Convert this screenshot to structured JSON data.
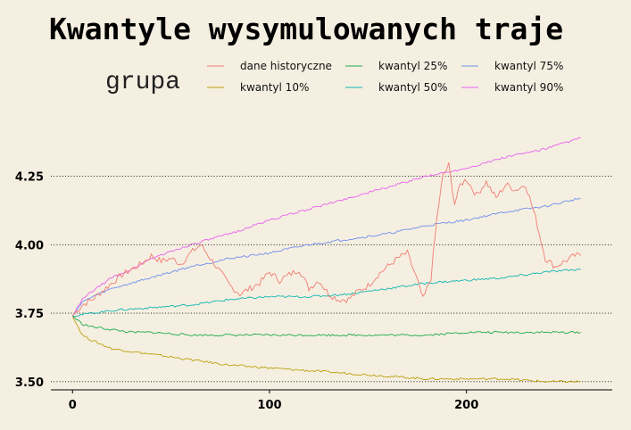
{
  "chart_data": {
    "type": "line",
    "title": "Kwantyle wysymulowanych traje",
    "xlabel": "",
    "ylabel": "",
    "xlim": [
      -11,
      274
    ],
    "ylim": [
      3.47,
      4.47
    ],
    "x_ticks": [
      0,
      100,
      200
    ],
    "y_ticks": [
      3.5,
      3.75,
      4.0,
      4.25
    ],
    "y_tick_labels": [
      "3.50",
      "3.75",
      "4.00",
      "4.25"
    ],
    "grid": "horizontal-dotted",
    "legend": {
      "title": "grupa",
      "placement": "top",
      "entries": [
        "dane historyczne",
        "kwantyl 10%",
        "kwantyl 25%",
        "kwantyl 50%",
        "kwantyl 75%",
        "kwantyl 90%"
      ]
    },
    "series": [
      {
        "name": "dane historyczne",
        "color": "#f07d72",
        "x": [
          0,
          5,
          10,
          15,
          20,
          25,
          30,
          35,
          40,
          45,
          50,
          55,
          60,
          65,
          70,
          75,
          80,
          85,
          90,
          95,
          100,
          105,
          110,
          115,
          120,
          125,
          130,
          135,
          140,
          145,
          150,
          155,
          160,
          165,
          170,
          175,
          178,
          182,
          185,
          188,
          191,
          194,
          197,
          200,
          205,
          210,
          215,
          220,
          225,
          230,
          235,
          240,
          245,
          250,
          255,
          258
        ],
        "y": [
          3.74,
          3.78,
          3.8,
          3.83,
          3.86,
          3.89,
          3.91,
          3.93,
          3.96,
          3.94,
          3.95,
          3.93,
          3.97,
          4.0,
          3.95,
          3.9,
          3.85,
          3.82,
          3.84,
          3.86,
          3.9,
          3.87,
          3.89,
          3.91,
          3.84,
          3.87,
          3.82,
          3.8,
          3.8,
          3.83,
          3.85,
          3.89,
          3.92,
          3.95,
          3.97,
          3.87,
          3.8,
          3.88,
          4.1,
          4.25,
          4.29,
          4.15,
          4.22,
          4.24,
          4.18,
          4.23,
          4.17,
          4.22,
          4.2,
          4.22,
          4.1,
          3.95,
          3.92,
          3.94,
          3.96,
          3.96
        ]
      },
      {
        "name": "kwantyl 10%",
        "color": "#b9a20d",
        "x": [
          0,
          5,
          10,
          20,
          30,
          40,
          60,
          80,
          100,
          120,
          140,
          160,
          180,
          200,
          220,
          240,
          258
        ],
        "y": [
          3.74,
          3.67,
          3.65,
          3.62,
          3.61,
          3.6,
          3.58,
          3.56,
          3.55,
          3.54,
          3.53,
          3.52,
          3.51,
          3.51,
          3.51,
          3.5,
          3.5
        ]
      },
      {
        "name": "kwantyl 25%",
        "color": "#1cab4a",
        "x": [
          0,
          5,
          10,
          20,
          30,
          40,
          60,
          80,
          100,
          120,
          140,
          160,
          180,
          200,
          220,
          240,
          258
        ],
        "y": [
          3.74,
          3.71,
          3.7,
          3.69,
          3.68,
          3.68,
          3.67,
          3.67,
          3.67,
          3.67,
          3.67,
          3.67,
          3.67,
          3.68,
          3.68,
          3.68,
          3.68
        ]
      },
      {
        "name": "kwantyl 50%",
        "color": "#10b6b1",
        "x": [
          0,
          10,
          20,
          40,
          60,
          80,
          100,
          120,
          140,
          160,
          180,
          200,
          220,
          240,
          258
        ],
        "y": [
          3.74,
          3.75,
          3.76,
          3.77,
          3.78,
          3.8,
          3.81,
          3.81,
          3.82,
          3.84,
          3.86,
          3.87,
          3.88,
          3.9,
          3.91
        ]
      },
      {
        "name": "kwantyl 75%",
        "color": "#6d8fee",
        "x": [
          0,
          5,
          10,
          20,
          30,
          40,
          60,
          80,
          100,
          120,
          140,
          160,
          180,
          200,
          220,
          240,
          258
        ],
        "y": [
          3.74,
          3.79,
          3.81,
          3.84,
          3.86,
          3.88,
          3.92,
          3.95,
          3.97,
          4.0,
          4.02,
          4.04,
          4.07,
          4.09,
          4.12,
          4.14,
          4.17
        ]
      },
      {
        "name": "kwantyl 90%",
        "color": "#e760ee",
        "x": [
          0,
          5,
          10,
          20,
          30,
          40,
          60,
          80,
          100,
          120,
          140,
          160,
          180,
          200,
          220,
          240,
          258
        ],
        "y": [
          3.74,
          3.8,
          3.83,
          3.88,
          3.91,
          3.95,
          4.0,
          4.04,
          4.09,
          4.13,
          4.17,
          4.21,
          4.25,
          4.28,
          4.32,
          4.35,
          4.39
        ]
      }
    ]
  }
}
